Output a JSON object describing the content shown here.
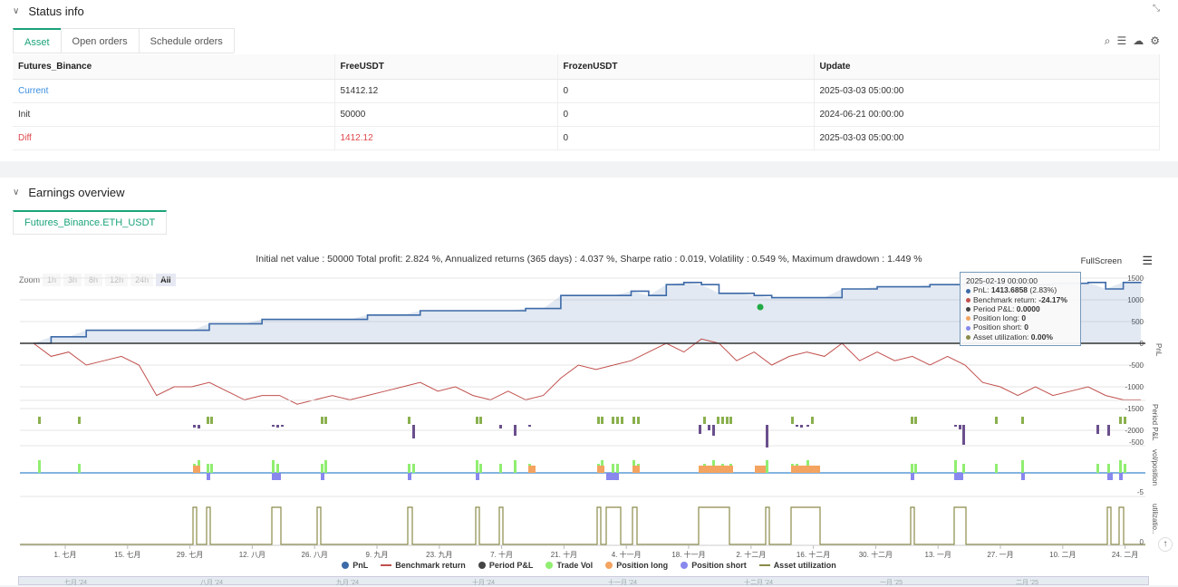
{
  "status": {
    "title": "Status info",
    "tabs": [
      "Asset",
      "Open orders",
      "Schedule orders"
    ],
    "table": {
      "headers": [
        "Futures_Binance",
        "FreeUSDT",
        "FrozenUSDT",
        "Update"
      ],
      "rows": [
        [
          "Current",
          "51412.12",
          "0",
          "2025-03-03 05:00:00"
        ],
        [
          "Init",
          "50000",
          "0",
          "2024-06-21 00:00:00"
        ],
        [
          "Diff",
          "1412.12",
          "0",
          "2025-03-03 05:00:00"
        ]
      ]
    }
  },
  "earnings": {
    "title": "Earnings overview",
    "tab": "Futures_Binance.ETH_USDT",
    "summary": "Initial net value : 50000 Total profit: 2.824 %, Annualized returns (365 days) : 4.037 %, Sharpe ratio : 0.019, Volatility : 0.549 %, Maximum drawdown : 1.449 %",
    "fullscreen": "FullScreen",
    "zoom_label": "Zoom",
    "zoom_buttons": [
      "1h",
      "3h",
      "8h",
      "12h",
      "24h",
      "All"
    ],
    "tooltip": {
      "date": "2025-02-19 00:00:00",
      "lines": [
        {
          "label": "PnL: ",
          "value": "1413.6858",
          "suffix": " (2.83%)",
          "color": "#3d6aa8"
        },
        {
          "label": "Benchmark return: ",
          "value": "-24.17%",
          "suffix": "",
          "color": "#c0504d"
        },
        {
          "label": "Period P&L: ",
          "value": "0.0000",
          "suffix": "",
          "color": "#444444"
        },
        {
          "label": "Position long: ",
          "value": "0",
          "suffix": "",
          "color": "#f4a460"
        },
        {
          "label": "Position short: ",
          "value": "0",
          "suffix": "",
          "color": "#8888ee"
        },
        {
          "label": "Asset utilization: ",
          "value": "0.00%",
          "suffix": "",
          "color": "#8b8b4b"
        }
      ]
    },
    "legend": [
      {
        "label": "PnL",
        "color": "#3d6aa8",
        "kind": "dot"
      },
      {
        "label": "Benchmark return",
        "color": "#c0504d",
        "kind": "line"
      },
      {
        "label": "Period P&L",
        "color": "#444444",
        "kind": "dot"
      },
      {
        "label": "Trade Vol",
        "color": "#90ee70",
        "kind": "dot"
      },
      {
        "label": "Position long",
        "color": "#f4a460",
        "kind": "dot"
      },
      {
        "label": "Position short",
        "color": "#8888ee",
        "kind": "dot"
      },
      {
        "label": "Asset utilization",
        "color": "#8b8b4b",
        "kind": "line"
      }
    ],
    "navigator_labels": [
      "七月 '24",
      "八月 '24",
      "九月 '24",
      "十月 '24",
      "十一月 '24",
      "十二月 '24",
      "一月 '25",
      "二月 '25"
    ]
  },
  "chart_data": {
    "type": "line",
    "x_ticks": [
      "1. 七月",
      "15. 七月",
      "29. 七月",
      "12. 八月",
      "26. 八月",
      "9. 九月",
      "23. 九月",
      "7. 十月",
      "21. 十月",
      "4. 十一月",
      "18. 十一月",
      "2. 十二月",
      "16. 十二月",
      "30. 十二月",
      "13. 一月",
      "27. 一月",
      "10. 二月",
      "24. 二月"
    ],
    "pnl_axis": {
      "title": "PnL",
      "ticks": [
        "1500",
        "1000",
        "500",
        "0",
        "-500",
        "-1000",
        "-1500",
        "-2000"
      ]
    },
    "period_axis": {
      "title": "Period P&L",
      "ticks": [
        "-500"
      ]
    },
    "vol_axis": {
      "title": "vol/position",
      "ticks": [
        "-5"
      ]
    },
    "util_axis": {
      "title": "utilizatio..",
      "ticks": [
        "0"
      ]
    },
    "series": [
      {
        "name": "PnL",
        "values": [
          0,
          150,
          150,
          300,
          300,
          300,
          300,
          300,
          300,
          300,
          450,
          450,
          450,
          550,
          550,
          550,
          550,
          550,
          550,
          650,
          650,
          650,
          750,
          750,
          750,
          750,
          750,
          750,
          800,
          800,
          1100,
          1100,
          1100,
          1100,
          1200,
          1100,
          1350,
          1400,
          1350,
          1150,
          1150,
          1100,
          1050,
          1050,
          1050,
          1050,
          1250,
          1250,
          1300,
          1300,
          1300,
          1350,
          1350,
          1350,
          1350,
          1350,
          1350,
          1350,
          1380,
          1380,
          1400,
          1250,
          1400,
          1410
        ]
      },
      {
        "name": "Benchmark return",
        "values": [
          0,
          -300,
          -200,
          -500,
          -400,
          -300,
          -500,
          -1200,
          -1000,
          -1000,
          -900,
          -1100,
          -1300,
          -1200,
          -1200,
          -1400,
          -1300,
          -1200,
          -1300,
          -1200,
          -1100,
          -1000,
          -900,
          -1100,
          -1000,
          -1200,
          -1300,
          -1100,
          -1300,
          -1200,
          -800,
          -500,
          -600,
          -500,
          -400,
          -200,
          0,
          -200,
          100,
          0,
          -400,
          -200,
          -500,
          -300,
          -200,
          -300,
          0,
          -400,
          -200,
          -400,
          -300,
          -500,
          -300,
          -500,
          -900,
          -1000,
          -1200,
          -1000,
          -1200,
          -1100,
          -1000,
          -1200,
          -1300,
          -1300
        ]
      }
    ]
  }
}
